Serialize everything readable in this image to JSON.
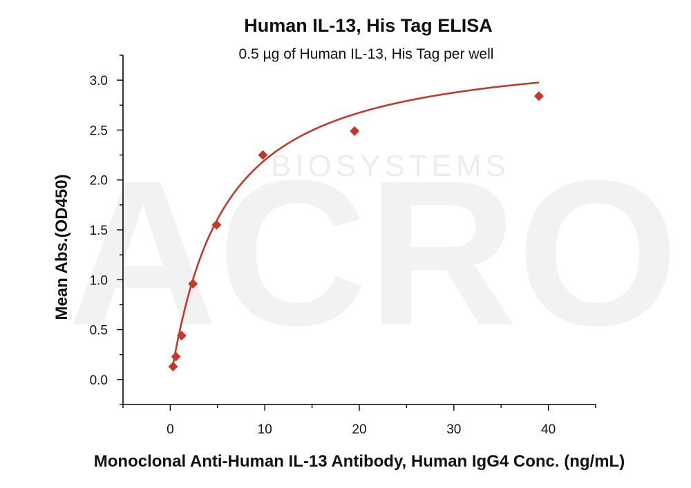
{
  "chart_data": {
    "type": "scatter",
    "title": "Human IL-13, His Tag ELISA",
    "subtitle": "0.5 µg of Human IL-13, His Tag per well",
    "xlabel": "Monoclonal Anti-Human IL-13 Antibody, Human IgG4 Conc. (ng/mL)",
    "ylabel": "Mean Abs.(OD450)",
    "xlim": [
      -5,
      45
    ],
    "ylim": [
      -0.25,
      3.25
    ],
    "xticks": [
      0,
      10,
      20,
      30,
      40
    ],
    "yticks": [
      0.0,
      0.5,
      1.0,
      1.5,
      2.0,
      2.5,
      3.0
    ],
    "xtick_labels": [
      "0",
      "10",
      "20",
      "30",
      "40"
    ],
    "ytick_labels": [
      "0.0",
      "0.5",
      "1.0",
      "1.5",
      "2.0",
      "2.5",
      "3.0"
    ],
    "grid": false,
    "legend": "none",
    "marker": "diamond",
    "series": [
      {
        "x": [
          0.3,
          0.6,
          1.2,
          2.4,
          4.9,
          9.8,
          19.5,
          39.0
        ],
        "y": [
          0.13,
          0.23,
          0.44,
          0.96,
          1.55,
          2.25,
          2.49,
          2.84
        ],
        "fit": "four-parameter logistic curve",
        "color": "#c0392b"
      }
    ],
    "watermark": {
      "text": "ACRO",
      "subtext": "BIOSYSTEMS",
      "color": "#eeeeee"
    }
  }
}
